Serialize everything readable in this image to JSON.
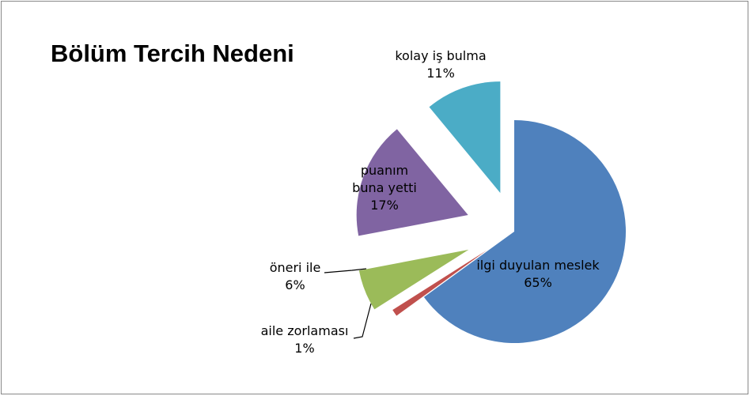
{
  "chart_data": {
    "type": "pie",
    "title": "Bölüm Tercih Nedeni",
    "categories": [
      "ilgi duyulan meslek",
      "aile zorlaması",
      "öneri ile",
      "puanım buna yetti",
      "kolay iş bulma"
    ],
    "values": [
      65,
      1,
      6,
      17,
      11
    ],
    "value_labels": [
      "65%",
      "1%",
      "6%",
      "17%",
      "11%"
    ],
    "colors": [
      "#4f81bd",
      "#c0504d",
      "#9bbb59",
      "#8064a2",
      "#4bacc6"
    ]
  }
}
